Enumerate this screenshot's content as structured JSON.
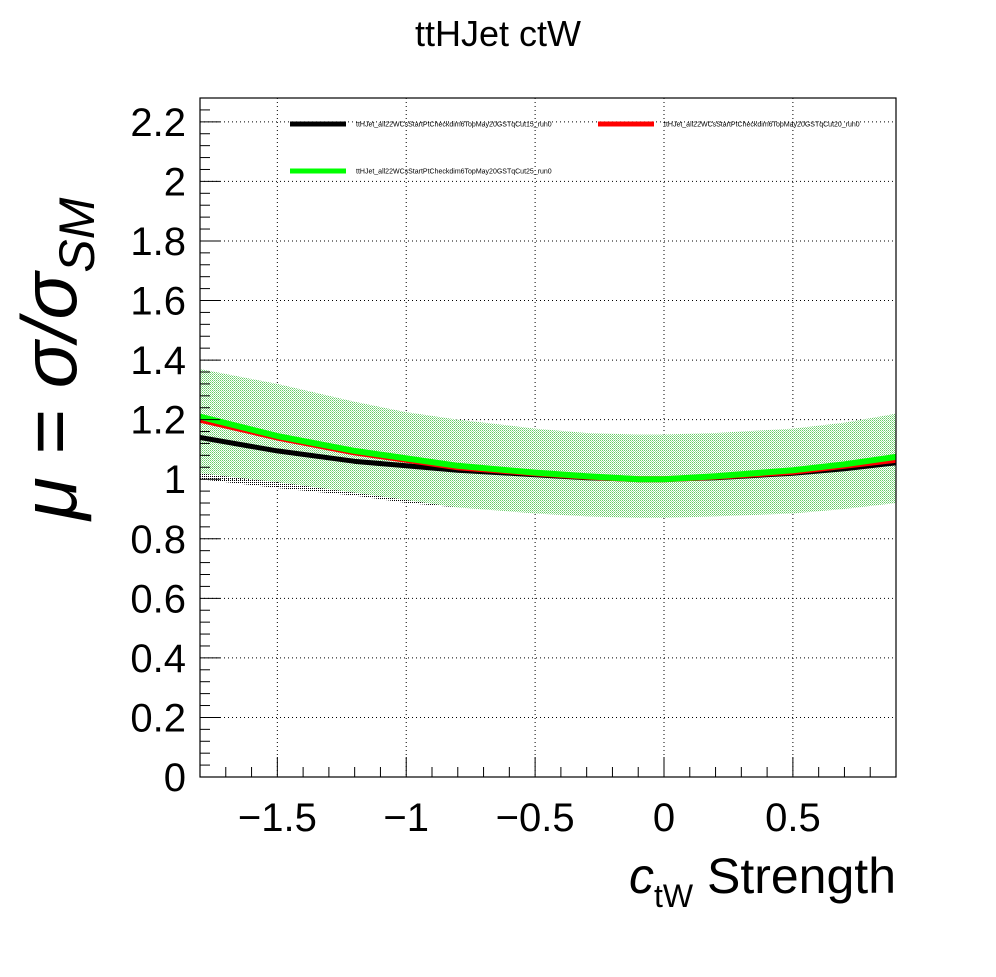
{
  "chart_data": {
    "type": "line",
    "title": "ttHJet ctW",
    "xlabel": {
      "var": "c",
      "sub": "tW",
      "rest": " Strength"
    },
    "ylabel": {
      "mu": "μ = σ/σ",
      "sub": "SM"
    },
    "xlim": [
      -1.8,
      0.9
    ],
    "ylim": [
      0,
      2.28
    ],
    "grid": true,
    "legend_position": "top-left, inside plot",
    "x_ticks": [
      -1.5,
      -1,
      -0.5,
      0,
      0.5
    ],
    "x_tick_labels": [
      "−1.5",
      "−1",
      "−0.5",
      "0",
      "0.5"
    ],
    "y_ticks": [
      0,
      0.2,
      0.4,
      0.6,
      0.8,
      1,
      1.2,
      1.4,
      1.6,
      1.8,
      2,
      2.2
    ],
    "y_tick_labels": [
      "0",
      "0.2",
      "0.4",
      "0.6",
      "0.8",
      "1",
      "1.2",
      "1.4",
      "1.6",
      "1.8",
      "2",
      "2.2"
    ],
    "series": [
      {
        "name": "ttHJet_all22WCsStartPtCheckdim6TopMay20GSTqCut15_run0",
        "color": "#000000",
        "x": [
          -1.8,
          -1.5,
          -1.2,
          -1.0,
          -0.8,
          -0.5,
          -0.3,
          -0.1,
          0.0,
          0.2,
          0.5,
          0.7,
          0.9
        ],
        "y": [
          1.14,
          1.095,
          1.06,
          1.045,
          1.03,
          1.015,
          1.005,
          1.0,
          1.0,
          1.005,
          1.02,
          1.035,
          1.055
        ],
        "band_low": [
          1.0,
          0.97,
          0.945,
          0.92,
          0.905,
          0.9,
          0.9,
          0.9,
          0.9,
          0.905,
          0.91,
          0.915,
          0.93
        ],
        "band_high": [
          1.05,
          1.04,
          1.03,
          1.02,
          1.015,
          1.01,
          1.0,
          1.0,
          1.0,
          1.005,
          1.02,
          1.035,
          1.05
        ],
        "band_color": "#000000"
      },
      {
        "name": "ttHJet_all22WCsStartPtCheckdim6TopMay20GSTqCut20_run0",
        "color": "#ff0000",
        "x": [
          -1.8,
          -1.5,
          -1.2,
          -1.0,
          -0.8,
          -0.5,
          -0.3,
          -0.1,
          0.0,
          0.2,
          0.5,
          0.7,
          0.9
        ],
        "y": [
          1.2,
          1.14,
          1.09,
          1.065,
          1.04,
          1.02,
          1.008,
          1.0,
          1.0,
          1.008,
          1.025,
          1.045,
          1.065
        ]
      },
      {
        "name": "ttHJet_all22WCsStartPtCheckdim6TopMay20GSTqCut25_run0",
        "color": "#00ff00",
        "x": [
          -1.8,
          -1.5,
          -1.2,
          -1.0,
          -0.8,
          -0.5,
          -0.3,
          -0.1,
          0.0,
          0.2,
          0.5,
          0.7,
          0.9
        ],
        "y": [
          1.21,
          1.145,
          1.095,
          1.07,
          1.045,
          1.022,
          1.01,
          1.0,
          1.0,
          1.01,
          1.03,
          1.05,
          1.075
        ],
        "band_low": [
          1.02,
          0.99,
          0.955,
          0.93,
          0.905,
          0.885,
          0.875,
          0.87,
          0.87,
          0.875,
          0.885,
          0.9,
          0.92
        ],
        "band_high": [
          1.37,
          1.32,
          1.26,
          1.225,
          1.2,
          1.17,
          1.155,
          1.15,
          1.15,
          1.155,
          1.17,
          1.19,
          1.22
        ],
        "band_color": "#99e699"
      }
    ]
  }
}
